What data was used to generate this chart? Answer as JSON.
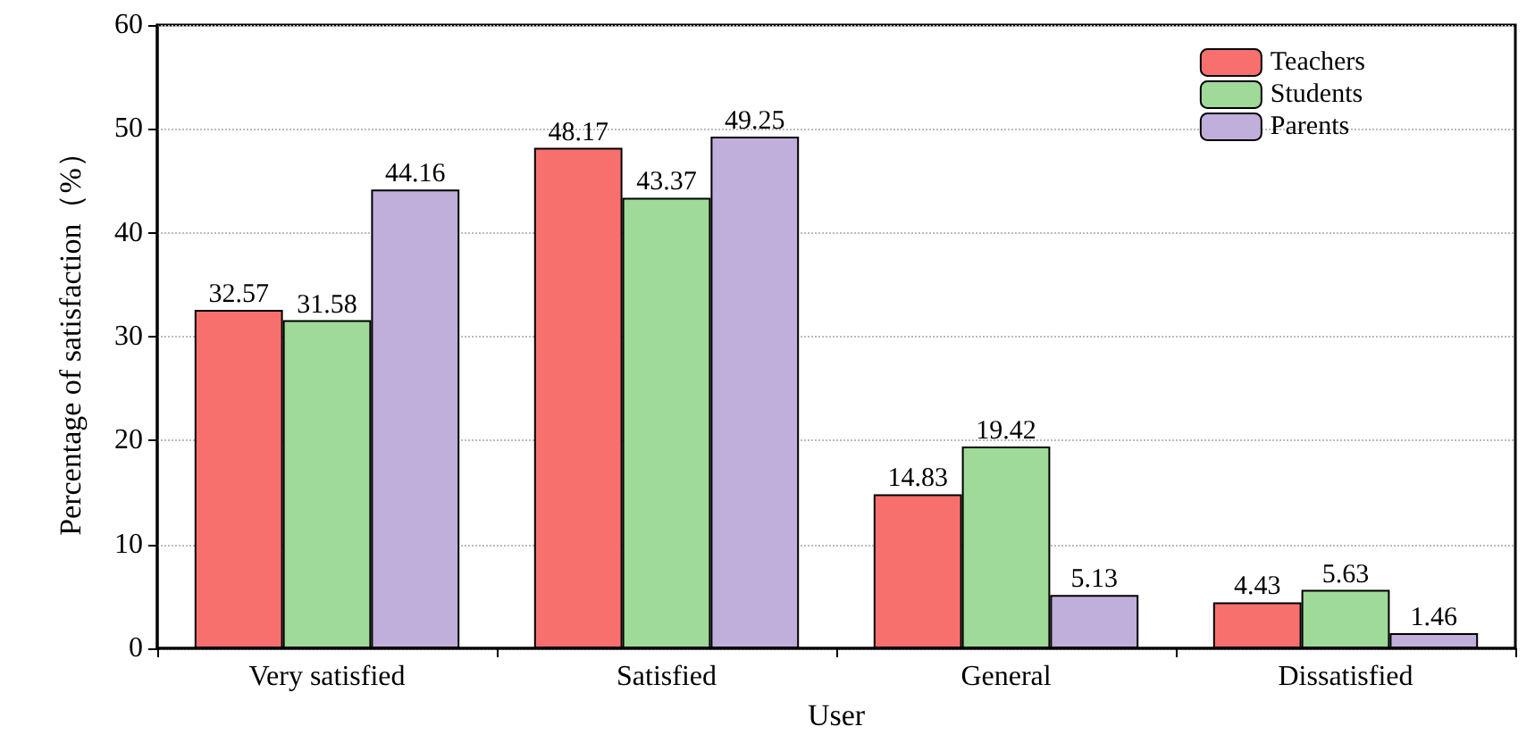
{
  "chart_data": {
    "type": "bar",
    "xlabel": "User",
    "ylabel": "Percentage of satisfaction（%）",
    "categories": [
      "Very satisfied",
      "Satisfied",
      "General",
      "Dissatisfied"
    ],
    "series": [
      {
        "name": "Teachers",
        "color": "#f8706e",
        "values": [
          32.57,
          48.17,
          14.83,
          4.43
        ]
      },
      {
        "name": "Students",
        "color": "#9fda98",
        "values": [
          31.58,
          43.37,
          19.42,
          5.63
        ]
      },
      {
        "name": "Parents",
        "color": "#c0aedb",
        "values": [
          44.16,
          49.25,
          5.13,
          1.46
        ]
      }
    ],
    "ylim": [
      0,
      60
    ],
    "yticks": [
      0,
      10,
      20,
      30,
      40,
      50,
      60
    ],
    "grid": "y",
    "legend": "top right",
    "data_labels": true
  }
}
